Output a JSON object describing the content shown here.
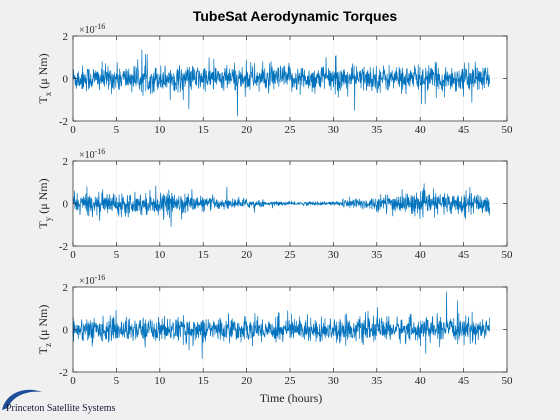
{
  "chart_data": {
    "type": "line",
    "title": "TubeSat Aerodynamic Torques",
    "xlabel": "Time (hours)",
    "x_ticks": [
      "0",
      "5",
      "10",
      "15",
      "20",
      "25",
      "30",
      "35",
      "40",
      "45",
      "50"
    ],
    "xlim": [
      0,
      50
    ],
    "data_x_range": [
      0,
      48
    ],
    "color": "#0072bd",
    "grid": true,
    "panels": [
      {
        "ylabel": "T_x (μ Nm)",
        "y_main": "T",
        "y_sub": "x",
        "y_unit": "(μ Nm)",
        "exponent": "×10",
        "exponent_power": "-16",
        "ylim": [
          -2,
          2
        ],
        "y_ticks": [
          "2",
          "0",
          "-2"
        ],
        "typical_amplitude": 0.55,
        "peak_amplitude": 1.9,
        "envelope": "uniform"
      },
      {
        "ylabel": "T_y (μ Nm)",
        "y_main": "T",
        "y_sub": "y",
        "y_unit": "(μ Nm)",
        "exponent": "×10",
        "exponent_power": "-16",
        "ylim": [
          -2,
          2
        ],
        "y_ticks": [
          "2",
          "0",
          "-2"
        ],
        "typical_amplitude": 0.45,
        "peak_amplitude": 2.0,
        "envelope": "quiet-mid"
      },
      {
        "ylabel": "T_z (μ Nm)",
        "y_main": "T",
        "y_sub": "z",
        "y_unit": "(μ Nm)",
        "exponent": "×10",
        "exponent_power": "-16",
        "ylim": [
          -2,
          2
        ],
        "y_ticks": [
          "2",
          "0",
          "-2"
        ],
        "typical_amplitude": 0.5,
        "peak_amplitude": 1.9,
        "envelope": "uniform"
      }
    ]
  },
  "branding": {
    "logo_text": "Princeton Satellite Systems",
    "logo_icon": "swoosh-logo-icon"
  }
}
